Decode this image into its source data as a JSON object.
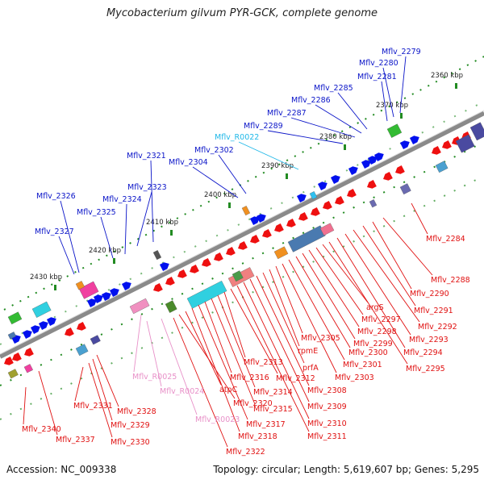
{
  "title": "Mycobacterium gilvum PYR-GCK, complete genome",
  "footer": {
    "accession": "Accession: NC_009338",
    "stats": "Topology: circular; Length: 5,619,607 bp; Genes: 5,295"
  },
  "colors": {
    "forward_label": "#0a14c8",
    "reverse_label": "#e01010",
    "rna_label": "#e890c8",
    "trna_label": "#20b8e8",
    "forward_gene": "#0010ee",
    "reverse_gene": "#ee1010",
    "backbone": "#777777",
    "tick": "#228b22"
  },
  "scale_labels": [
    "2360 kbp",
    "2370 kbp",
    "2380 kbp",
    "2390 kbp",
    "2400 kbp",
    "2410 kbp",
    "2420 kbp",
    "2430 kbp"
  ],
  "forward_genes": [
    "Mflv_2279",
    "Mflv_2280",
    "Mflv_2281",
    "Mflv_2285",
    "Mflv_2286",
    "Mflv_2287",
    "Mflv_2289",
    "Mflv_R0022",
    "Mflv_2302",
    "Mflv_2304",
    "Mflv_2321",
    "Mflv_2323",
    "Mflv_2324",
    "Mflv_2325",
    "Mflv_2326",
    "Mflv_2327"
  ],
  "reverse_genes": [
    "Mflv_2284",
    "Mflv_2288",
    "Mflv_2290",
    "Mflv_2291",
    "Mflv_2292",
    "Mflv_2293",
    "Mflv_2294",
    "Mflv_2295",
    "argS",
    "Mflv_2297",
    "Mflv_2298",
    "Mflv_2299",
    "Mflv_2300",
    "Mflv_2301",
    "Mflv_2303",
    "Mflv_2305",
    "rpmE",
    "prfA",
    "Mflv_2308",
    "Mflv_2309",
    "Mflv_2310",
    "Mflv_2311",
    "Mflv_2312",
    "Mflv_2313",
    "Mflv_2314",
    "Mflv_2315",
    "Mflv_2316",
    "Mflv_2317",
    "Mflv_2318",
    "atpC",
    "Mflv_2320",
    "Mflv_2322",
    "Mflv_R0023",
    "Mflv_R0024",
    "Mflv_R0025",
    "Mflv_2328",
    "Mflv_2329",
    "Mflv_2330",
    "Mflv_2331",
    "Mflv_2337",
    "Mflv_2340"
  ]
}
